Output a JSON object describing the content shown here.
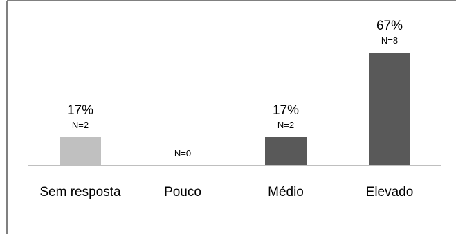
{
  "chart_data": {
    "type": "bar",
    "title": "",
    "xlabel": "",
    "ylabel": "",
    "categories": [
      "Sem resposta",
      "Pouco",
      "Médio",
      "Elevado"
    ],
    "values": [
      17,
      0,
      17,
      67
    ],
    "percent_labels": [
      "17%",
      "",
      "17%",
      "67%"
    ],
    "n_labels": [
      "N=2",
      "N=0",
      "N=2",
      "N=8"
    ],
    "bar_colors": [
      "#c0c0c0",
      "#bfbfbf",
      "#595959",
      "#595959"
    ],
    "ylim": [
      0,
      67
    ],
    "grid": false,
    "legend": "none"
  },
  "colors": {
    "frame": "#000000",
    "axis": "#7f7f7f",
    "background": "#ffffff"
  }
}
